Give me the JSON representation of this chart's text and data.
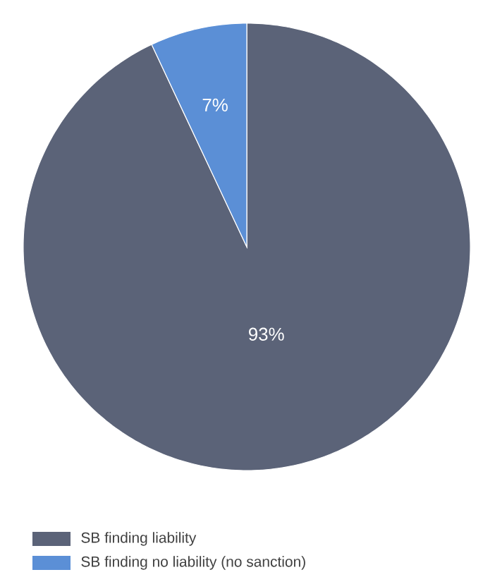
{
  "chart_data": {
    "type": "pie",
    "categories": [
      "SB finding liability",
      "SB finding no liability (no sanction)"
    ],
    "values": [
      93,
      7
    ],
    "value_labels": [
      "93%",
      "7%"
    ],
    "colors": [
      "#5b6378",
      "#5b8fd6"
    ],
    "legend": "bottom"
  }
}
